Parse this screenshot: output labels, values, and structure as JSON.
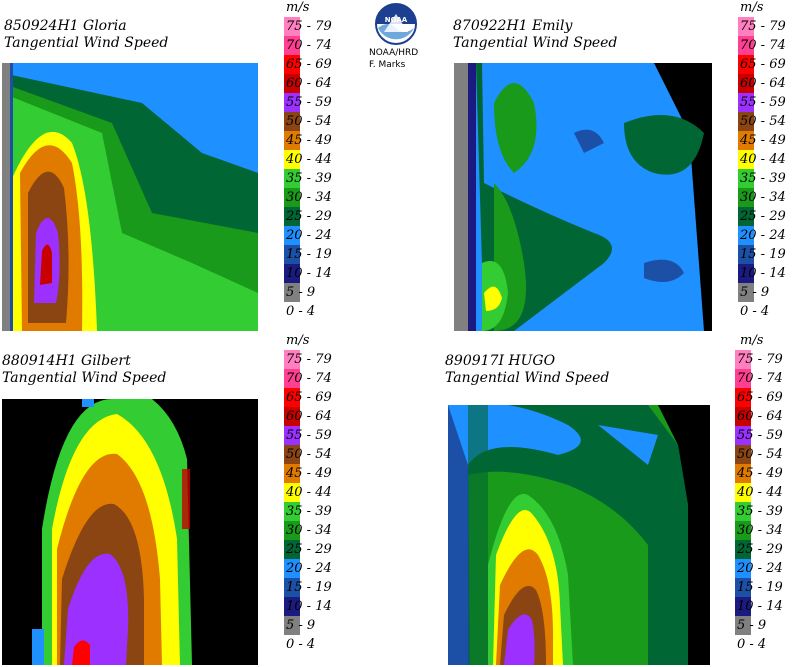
{
  "panels": [
    {
      "title_line1": "850924H1 Gloria",
      "title_line2": "Tangential Wind Speed"
    },
    {
      "title_line1": "870922H1 Emily",
      "title_line2": "Tangential Wind Speed"
    },
    {
      "title_line1": "880914H1 Gilbert",
      "title_line2": "Tangential Wind Speed"
    },
    {
      "title_line1": "890917I HUGO",
      "title_line2": "Tangential Wind Speed"
    }
  ],
  "legend": {
    "unit": "m/s",
    "bins": [
      {
        "label": "75 - 79",
        "color": "#ff7fc0"
      },
      {
        "label": "70 - 74",
        "color": "#ff3f8f"
      },
      {
        "label": "65 - 69",
        "color": "#ff0000"
      },
      {
        "label": "60 - 64",
        "color": "#c80000"
      },
      {
        "label": "55 - 59",
        "color": "#9b30ff"
      },
      {
        "label": "50 - 54",
        "color": "#8b4513"
      },
      {
        "label": "45 - 49",
        "color": "#e07b00"
      },
      {
        "label": "40 - 44",
        "color": "#ffff00"
      },
      {
        "label": "35 - 39",
        "color": "#33cc33"
      },
      {
        "label": "30 - 34",
        "color": "#1a9a1a"
      },
      {
        "label": "25 - 29",
        "color": "#006633"
      },
      {
        "label": "20 - 24",
        "color": "#1e90ff"
      },
      {
        "label": "15 - 19",
        "color": "#1c4fa6"
      },
      {
        "label": "10 - 14",
        "color": "#1a1a80"
      },
      {
        "label": "5 - 9",
        "color": "#808080"
      },
      {
        "label": "0 - 4",
        "color": "#ffffff"
      }
    ]
  },
  "logo": {
    "text": "NOAA"
  },
  "credit": {
    "line1": "NOAA/HRD",
    "line2": "F. Marks"
  },
  "colors": {
    "background": "#ffffff",
    "nodata": "#000000"
  }
}
